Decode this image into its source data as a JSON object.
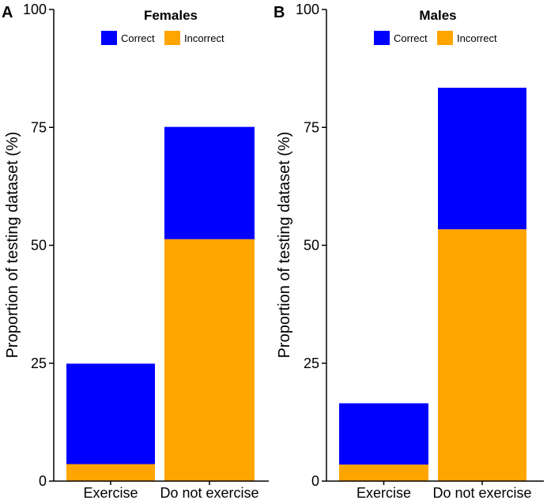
{
  "colors": {
    "correct": "#0000ff",
    "incorrect": "#ffa500"
  },
  "chart_data": [
    {
      "panel": "A",
      "type": "bar",
      "stacked": true,
      "title": "Females",
      "categories": [
        "Exercise",
        "Do not exercise"
      ],
      "series": [
        {
          "name": "Correct",
          "values": [
            21.3,
            23.8
          ]
        },
        {
          "name": "Incorrect",
          "values": [
            3.6,
            51.3
          ]
        }
      ],
      "ylabel": "Proportion of testing dataset (%)",
      "xlabel": "",
      "ylim": [
        0,
        100
      ],
      "yticks": [
        0,
        25,
        50,
        75,
        100
      ],
      "legend": "top-center"
    },
    {
      "panel": "B",
      "type": "bar",
      "stacked": true,
      "title": "Males",
      "categories": [
        "Exercise",
        "Do not exercise"
      ],
      "series": [
        {
          "name": "Correct",
          "values": [
            13.0,
            30.0
          ]
        },
        {
          "name": "Incorrect",
          "values": [
            3.5,
            53.4
          ]
        }
      ],
      "ylabel": "Proportion of testing dataset (%)",
      "xlabel": "",
      "ylim": [
        0,
        100
      ],
      "yticks": [
        0,
        25,
        50,
        75,
        100
      ],
      "legend": "top-center"
    }
  ]
}
